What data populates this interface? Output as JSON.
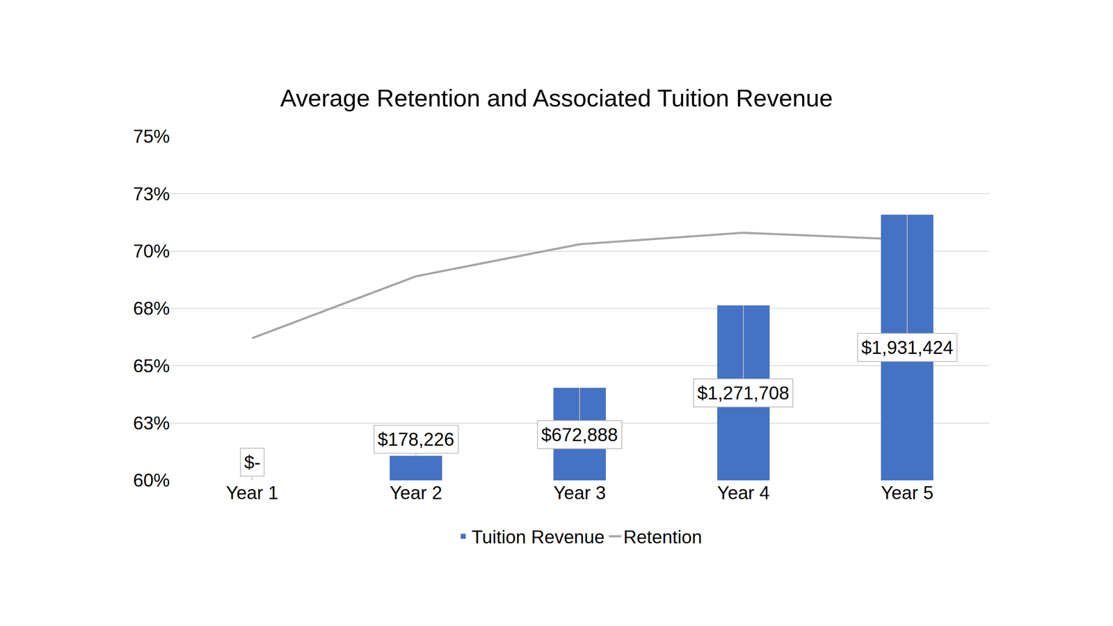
{
  "chart_data": {
    "type": "combo",
    "title": "Average Retention and Associated Tuition Revenue",
    "categories": [
      "Year 1",
      "Year 2",
      "Year 3",
      "Year 4",
      "Year 5"
    ],
    "ylim": [
      60,
      75
    ],
    "yticks": [
      60,
      {
        "value": 62.5,
        "label": "63%"
      },
      65,
      {
        "value": 67.5,
        "label": "68%"
      },
      70,
      {
        "value": 72.5,
        "label": "73%"
      },
      75
    ],
    "y2lim": [
      0,
      2500000
    ],
    "y2ticks": [],
    "grid": true,
    "legend": "bottom",
    "series": [
      {
        "name": "Tuition Revenue",
        "type": "bar",
        "color": "#4472c4",
        "axis": "y2",
        "values": [
          0,
          178226,
          672888,
          1271708,
          1931424
        ],
        "value_labels": [
          "$-",
          "$178,226",
          "$672,888",
          "$1,271,708",
          "$1,931,424"
        ],
        "data_labels": true
      },
      {
        "name": "Retention",
        "type": "line",
        "color": "#a5a5a5",
        "values": [
          66.2,
          68.9,
          70.3,
          70.8,
          70.5
        ]
      }
    ]
  }
}
